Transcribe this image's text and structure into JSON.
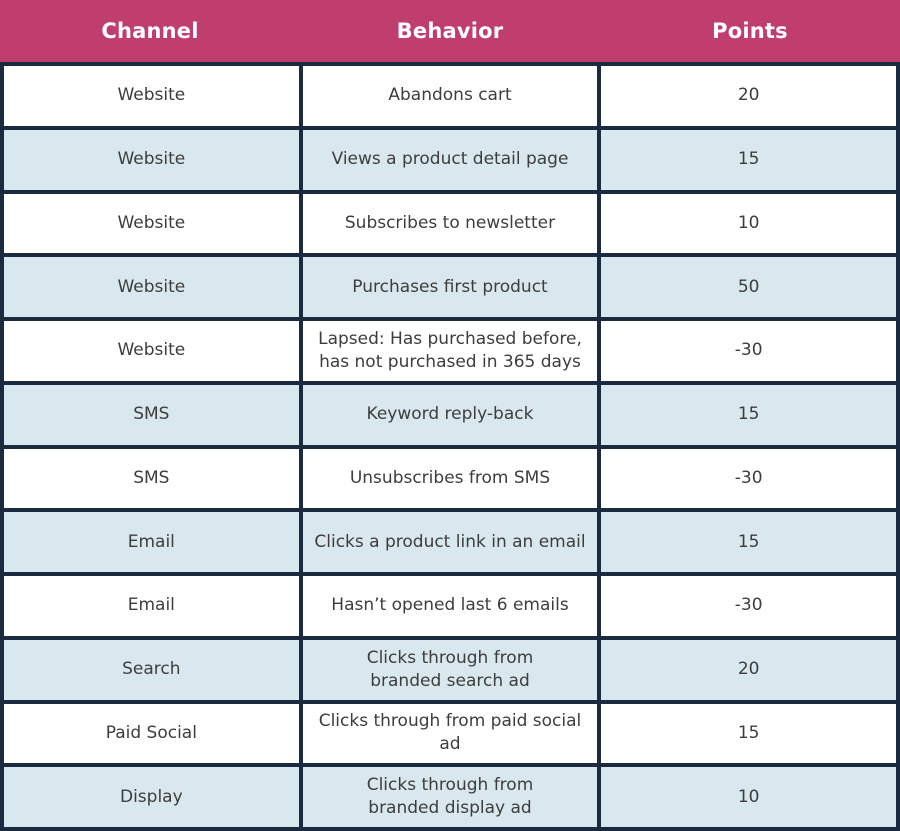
{
  "colors": {
    "header_bg": "#c03e6e",
    "border": "#1b2a3e",
    "row_bg": "#ffffff",
    "row_alt_bg": "#d8e8ee",
    "header_text": "#ffffff",
    "cell_text": "#3d3d3d"
  },
  "table": {
    "columns": [
      "Channel",
      "Behavior",
      "Points"
    ],
    "rows": [
      {
        "channel": "Website",
        "behavior": "Abandons cart",
        "points": "20"
      },
      {
        "channel": "Website",
        "behavior": "Views a product detail page",
        "points": "15"
      },
      {
        "channel": "Website",
        "behavior": "Subscribes to newsletter",
        "points": "10"
      },
      {
        "channel": "Website",
        "behavior": "Purchases first product",
        "points": "50"
      },
      {
        "channel": "Website",
        "behavior": "Lapsed: Has purchased before,\nhas not purchased in 365 days",
        "points": "-30"
      },
      {
        "channel": "SMS",
        "behavior": "Keyword reply-back",
        "points": "15"
      },
      {
        "channel": "SMS",
        "behavior": "Unsubscribes from SMS",
        "points": "-30"
      },
      {
        "channel": "Email",
        "behavior": "Clicks a product link in an email",
        "points": "15"
      },
      {
        "channel": "Email",
        "behavior": "Hasn’t opened last 6 emails",
        "points": "-30"
      },
      {
        "channel": "Search",
        "behavior": "Clicks through from\nbranded search ad",
        "points": "20"
      },
      {
        "channel": "Paid Social",
        "behavior": "Clicks through from paid social ad",
        "points": "15"
      },
      {
        "channel": "Display",
        "behavior": "Clicks through from\nbranded display ad",
        "points": "10"
      }
    ]
  }
}
